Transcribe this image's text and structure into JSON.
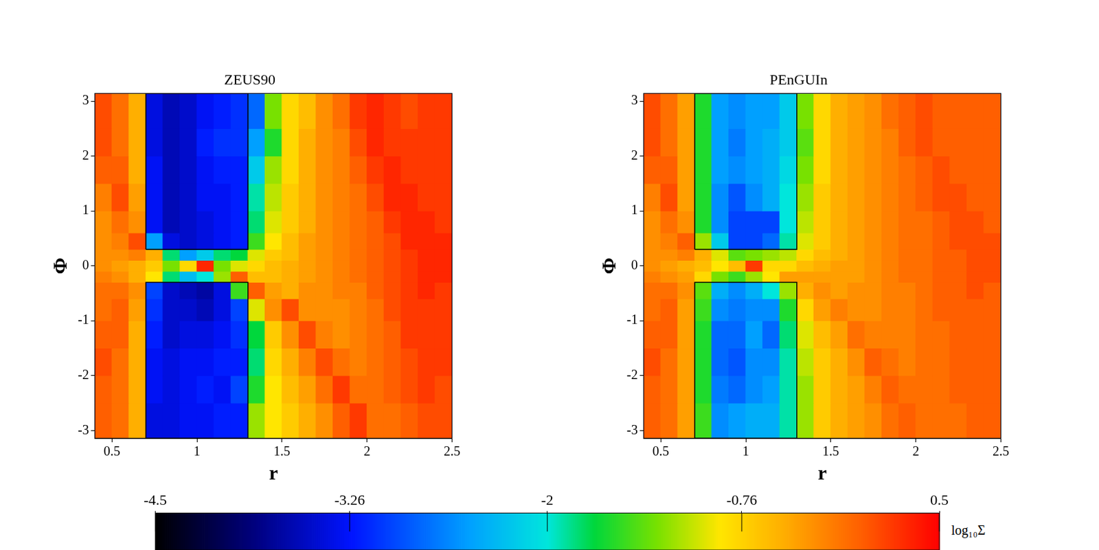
{
  "chart_data": [
    {
      "type": "heatmap",
      "title": "ZEUS90",
      "x_label": "r",
      "y_label": "Φ",
      "xlim": [
        0.4,
        2.5
      ],
      "ylim": [
        -3.1416,
        3.1416
      ],
      "xticks": [
        0.5,
        1,
        1.5,
        2,
        2.5
      ],
      "yticks": [
        -3,
        -2,
        -1,
        0,
        1,
        2,
        3
      ],
      "x_edges": [
        0.4,
        0.5,
        0.6,
        0.7,
        0.8,
        0.9,
        1.0,
        1.1,
        1.2,
        1.3,
        1.4,
        1.5,
        1.6,
        1.7,
        1.8,
        1.9,
        2.0,
        2.1,
        2.2,
        2.3,
        2.4,
        2.5
      ],
      "y_edges": [
        -3.1416,
        -2.5,
        -2,
        -1.5,
        -1,
        -0.6,
        -0.3,
        -0.1,
        0.1,
        0.3,
        0.6,
        1,
        1.5,
        2,
        2.5,
        3.1416
      ],
      "z": [
        [
          0.0,
          -0.1,
          -0.5,
          -3.4,
          -3.4,
          -3.3,
          -3.3,
          -3.2,
          -3.2,
          -1.2,
          -0.9,
          -0.7,
          -0.5,
          -0.3,
          0.0,
          0.2,
          -0.1,
          -0.1,
          0.0,
          0.1,
          0.1
        ],
        [
          0.0,
          -0.1,
          -0.5,
          -3.3,
          -3.4,
          -3.3,
          -3.2,
          -3.3,
          -3.0,
          -1.6,
          -0.9,
          -0.6,
          -0.4,
          -0.1,
          0.2,
          -0.1,
          -0.1,
          0.0,
          0.1,
          0.2,
          0.1
        ],
        [
          0.1,
          -0.1,
          -0.5,
          -3.3,
          -3.4,
          -3.3,
          -3.3,
          -3.2,
          -3.2,
          -1.8,
          -0.8,
          -0.5,
          -0.2,
          0.1,
          -0.1,
          -0.2,
          -0.1,
          0.0,
          0.1,
          0.2,
          0.2
        ],
        [
          0.0,
          0.0,
          -0.5,
          -3.2,
          -3.5,
          -3.4,
          -3.4,
          -3.3,
          -3.1,
          -1.7,
          -0.7,
          -0.3,
          0.1,
          -0.2,
          -0.3,
          -0.2,
          -0.1,
          0.0,
          0.2,
          0.2,
          0.2
        ],
        [
          -0.1,
          0.0,
          -0.4,
          -3.1,
          -3.5,
          -3.5,
          -3.6,
          -3.4,
          -3.0,
          -1.0,
          -0.3,
          0.1,
          -0.3,
          -0.3,
          -0.3,
          -0.2,
          -0.1,
          0.1,
          0.2,
          0.2,
          0.2
        ],
        [
          -0.1,
          -0.1,
          -0.3,
          -3.0,
          -3.5,
          -3.6,
          -3.7,
          -3.4,
          -1.5,
          0.0,
          -0.4,
          -0.5,
          -0.3,
          -0.3,
          -0.2,
          -0.2,
          0.0,
          0.1,
          0.2,
          0.3,
          0.2
        ],
        [
          -0.2,
          -0.3,
          -0.5,
          -0.9,
          -1.8,
          -2.3,
          -2.0,
          -1.2,
          0.0,
          -0.6,
          -0.6,
          -0.5,
          -0.4,
          -0.3,
          -0.2,
          -0.1,
          0.0,
          0.1,
          0.2,
          0.3,
          0.3
        ],
        [
          -0.3,
          -0.4,
          -0.5,
          -0.7,
          -1.3,
          -0.8,
          0.3,
          -1.3,
          -1.0,
          -0.8,
          -0.6,
          -0.5,
          -0.4,
          -0.3,
          -0.2,
          -0.1,
          0.0,
          0.1,
          0.2,
          0.3,
          0.3
        ],
        [
          -0.3,
          -0.3,
          -0.2,
          -0.5,
          -1.8,
          -2.5,
          -2.2,
          -1.8,
          -1.7,
          -1.0,
          -0.7,
          -0.6,
          -0.4,
          -0.3,
          -0.2,
          -0.1,
          0.0,
          0.1,
          0.2,
          0.3,
          0.3
        ],
        [
          -0.3,
          -0.2,
          0.1,
          -2.5,
          -3.4,
          -3.5,
          -3.4,
          -3.3,
          -3.2,
          -1.5,
          -0.9,
          -0.6,
          -0.4,
          -0.3,
          -0.2,
          -0.1,
          0.0,
          0.1,
          0.3,
          0.3,
          0.3
        ],
        [
          -0.3,
          -0.1,
          -0.3,
          -3.3,
          -3.6,
          -3.5,
          -3.4,
          -3.3,
          -3.2,
          -1.8,
          -1.0,
          -0.7,
          -0.5,
          -0.3,
          -0.2,
          -0.1,
          0.0,
          0.2,
          0.3,
          0.3,
          0.2
        ],
        [
          -0.2,
          0.1,
          -0.4,
          -3.3,
          -3.6,
          -3.5,
          -3.3,
          -3.3,
          -3.2,
          -1.9,
          -1.1,
          -0.7,
          -0.5,
          -0.3,
          -0.2,
          -0.1,
          0.1,
          0.3,
          0.3,
          0.2,
          0.2
        ],
        [
          0.0,
          0.0,
          -0.5,
          -3.3,
          -3.6,
          -3.5,
          -3.3,
          -3.2,
          -3.2,
          -2.2,
          -1.2,
          -0.8,
          -0.5,
          -0.3,
          -0.2,
          0.0,
          0.2,
          0.3,
          0.2,
          0.2,
          0.2
        ],
        [
          0.1,
          -0.1,
          -0.5,
          -3.4,
          -3.6,
          -3.5,
          -3.2,
          -3.1,
          -3.1,
          -2.5,
          -1.6,
          -0.8,
          -0.5,
          -0.3,
          -0.2,
          0.1,
          0.3,
          0.2,
          0.2,
          0.2,
          0.2
        ],
        [
          0.1,
          -0.1,
          -0.5,
          -3.4,
          -3.6,
          -3.5,
          -3.3,
          -3.2,
          -3.1,
          -2.8,
          -1.3,
          -0.8,
          -0.6,
          -0.3,
          -0.1,
          0.2,
          0.3,
          0.2,
          0.1,
          0.2,
          0.2
        ]
      ],
      "boxes": [
        {
          "x": [
            0.7,
            1.3
          ],
          "y": [
            0.3,
            3.1416
          ]
        },
        {
          "x": [
            0.7,
            1.3
          ],
          "y": [
            -3.1416,
            -0.3
          ]
        }
      ]
    },
    {
      "type": "heatmap",
      "title": "PEnGUIn",
      "x_label": "r",
      "y_label": "Φ",
      "xlim": [
        0.4,
        2.5
      ],
      "ylim": [
        -3.1416,
        3.1416
      ],
      "xticks": [
        0.5,
        1,
        1.5,
        2,
        2.5
      ],
      "yticks": [
        -3,
        -2,
        -1,
        0,
        1,
        2,
        3
      ],
      "x_edges": [
        0.4,
        0.5,
        0.6,
        0.7,
        0.8,
        0.9,
        1.0,
        1.1,
        1.2,
        1.3,
        1.4,
        1.5,
        1.6,
        1.7,
        1.8,
        1.9,
        2.0,
        2.1,
        2.2,
        2.3,
        2.4,
        2.5
      ],
      "y_edges": [
        -3.1416,
        -2.5,
        -2,
        -1.5,
        -1,
        -0.6,
        -0.3,
        -0.1,
        0.1,
        0.3,
        0.6,
        1,
        1.5,
        2,
        2.5,
        3.1416
      ],
      "z": [
        [
          0.0,
          -0.1,
          -0.4,
          -1.5,
          -2.6,
          -2.5,
          -2.4,
          -2.4,
          -1.9,
          -1.2,
          -0.7,
          -0.5,
          -0.4,
          -0.3,
          -0.1,
          0.0,
          -0.1,
          -0.1,
          -0.1,
          0.0,
          0.0
        ],
        [
          0.0,
          -0.1,
          -0.4,
          -1.6,
          -2.7,
          -2.8,
          -2.6,
          -2.5,
          -1.9,
          -1.2,
          -0.7,
          -0.5,
          -0.4,
          -0.2,
          0.0,
          -0.1,
          -0.1,
          -0.1,
          0.0,
          0.0,
          0.0
        ],
        [
          0.1,
          -0.1,
          -0.4,
          -1.6,
          -2.8,
          -2.9,
          -2.6,
          -2.6,
          -1.9,
          -1.1,
          -0.7,
          -0.5,
          -0.3,
          0.0,
          -0.1,
          -0.2,
          -0.1,
          -0.1,
          0.0,
          0.0,
          0.0
        ],
        [
          0.0,
          0.0,
          -0.4,
          -1.6,
          -2.8,
          -2.8,
          -2.5,
          -2.8,
          -1.8,
          -1.0,
          -0.6,
          -0.4,
          -0.1,
          -0.2,
          -0.2,
          -0.2,
          -0.1,
          -0.1,
          0.0,
          0.0,
          0.0
        ],
        [
          -0.1,
          0.0,
          -0.4,
          -1.5,
          -2.6,
          -2.7,
          -2.6,
          -2.6,
          -1.6,
          -0.8,
          -0.4,
          -0.2,
          -0.3,
          -0.3,
          -0.2,
          -0.2,
          -0.1,
          0.0,
          0.0,
          0.0,
          0.0
        ],
        [
          -0.1,
          -0.1,
          -0.3,
          -1.4,
          -2.4,
          -2.6,
          -2.4,
          -2.0,
          -1.2,
          -0.5,
          -0.3,
          -0.4,
          -0.3,
          -0.3,
          -0.2,
          -0.2,
          -0.1,
          0.0,
          0.0,
          0.1,
          0.0
        ],
        [
          -0.2,
          -0.3,
          -0.4,
          -0.8,
          -1.3,
          -1.5,
          -1.2,
          -0.9,
          -0.4,
          -0.4,
          -0.4,
          -0.4,
          -0.4,
          -0.3,
          -0.2,
          -0.1,
          -0.1,
          0.0,
          0.0,
          0.1,
          0.1
        ],
        [
          -0.3,
          -0.4,
          -0.5,
          -0.6,
          -0.9,
          -0.6,
          0.2,
          -0.8,
          -0.8,
          -0.6,
          -0.5,
          -0.4,
          -0.4,
          -0.3,
          -0.2,
          -0.1,
          -0.1,
          0.0,
          0.0,
          0.1,
          0.1
        ],
        [
          -0.3,
          -0.3,
          -0.2,
          -0.5,
          -1.0,
          -1.4,
          -1.3,
          -1.2,
          -1.1,
          -0.8,
          -0.6,
          -0.5,
          -0.4,
          -0.3,
          -0.2,
          -0.1,
          -0.1,
          0.0,
          0.0,
          0.1,
          0.1
        ],
        [
          -0.3,
          -0.2,
          0.0,
          -1.2,
          -2.2,
          -3.0,
          -3.0,
          -2.8,
          -1.9,
          -1.0,
          -0.7,
          -0.5,
          -0.4,
          -0.3,
          -0.2,
          -0.1,
          -0.1,
          0.0,
          0.1,
          0.1,
          0.1
        ],
        [
          -0.3,
          -0.1,
          -0.3,
          -1.6,
          -2.6,
          -3.0,
          -3.0,
          -3.0,
          -2.0,
          -1.1,
          -0.7,
          -0.5,
          -0.4,
          -0.3,
          -0.2,
          -0.1,
          -0.1,
          0.0,
          0.1,
          0.1,
          0.0
        ],
        [
          -0.2,
          0.1,
          -0.4,
          -1.6,
          -2.6,
          -2.9,
          -2.6,
          -2.4,
          -2.0,
          -1.2,
          -0.7,
          -0.5,
          -0.4,
          -0.3,
          -0.2,
          -0.1,
          0.0,
          0.1,
          0.1,
          0.0,
          0.0
        ],
        [
          0.0,
          0.0,
          -0.4,
          -1.6,
          -2.5,
          -2.6,
          -2.5,
          -2.4,
          -2.1,
          -1.3,
          -0.8,
          -0.5,
          -0.4,
          -0.3,
          -0.2,
          -0.1,
          0.0,
          0.1,
          0.0,
          0.0,
          0.0
        ],
        [
          0.1,
          -0.1,
          -0.4,
          -1.6,
          -2.5,
          -2.7,
          -2.5,
          -2.4,
          -2.2,
          -1.4,
          -0.8,
          -0.5,
          -0.4,
          -0.3,
          -0.2,
          0.0,
          0.1,
          0.0,
          0.0,
          0.0,
          0.0
        ],
        [
          0.1,
          -0.1,
          -0.4,
          -1.6,
          -2.5,
          -2.6,
          -2.5,
          -2.5,
          -2.2,
          -1.3,
          -0.8,
          -0.5,
          -0.4,
          -0.3,
          -0.1,
          0.0,
          0.1,
          0.0,
          0.0,
          0.0,
          0.0
        ]
      ],
      "boxes": [
        {
          "x": [
            0.7,
            1.3
          ],
          "y": [
            0.3,
            3.1416
          ]
        },
        {
          "x": [
            0.7,
            1.3
          ],
          "y": [
            -3.1416,
            -0.3
          ]
        }
      ]
    }
  ],
  "colorbar": {
    "range": [
      -4.5,
      0.5
    ],
    "ticks": [
      -4.5,
      -3.26,
      -2,
      -0.76,
      0.5
    ],
    "label": "log₁₀Σ"
  }
}
